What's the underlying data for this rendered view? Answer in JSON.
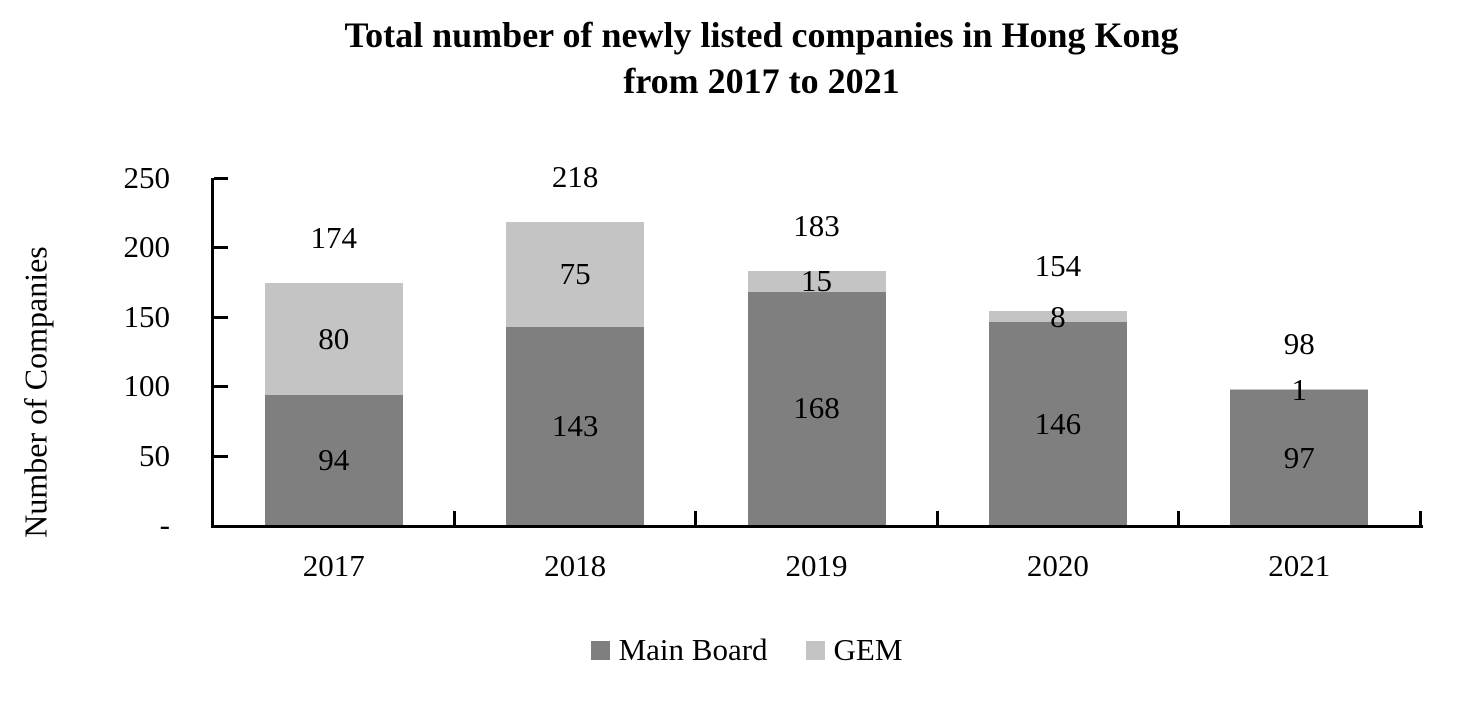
{
  "chart_data": {
    "type": "bar",
    "stacked": true,
    "title": "Total number of newly listed companies in Hong Kong",
    "subtitle": "from 2017 to 2021",
    "categories": [
      "2017",
      "2018",
      "2019",
      "2020",
      "2021"
    ],
    "series": [
      {
        "name": "Main Board",
        "color": "#7F7F7F",
        "values": [
          94,
          143,
          168,
          146,
          97
        ]
      },
      {
        "name": "GEM",
        "color": "#C4C4C4",
        "values": [
          80,
          75,
          15,
          8,
          1
        ]
      }
    ],
    "totals": [
      174,
      218,
      183,
      154,
      98
    ],
    "ylabel": "Number of Companies",
    "ylim": [
      0,
      250
    ],
    "yticks": [
      {
        "value": 250,
        "label": "250"
      },
      {
        "value": 200,
        "label": "200"
      },
      {
        "value": 150,
        "label": "150"
      },
      {
        "value": 100,
        "label": "100"
      },
      {
        "value": 50,
        "label": "50"
      },
      {
        "value": 0,
        "label": "-"
      }
    ],
    "grid": false,
    "legend_position": "bottom",
    "colors": {
      "axis": "#000000",
      "text": "#000000",
      "background": "#FFFFFF"
    }
  }
}
